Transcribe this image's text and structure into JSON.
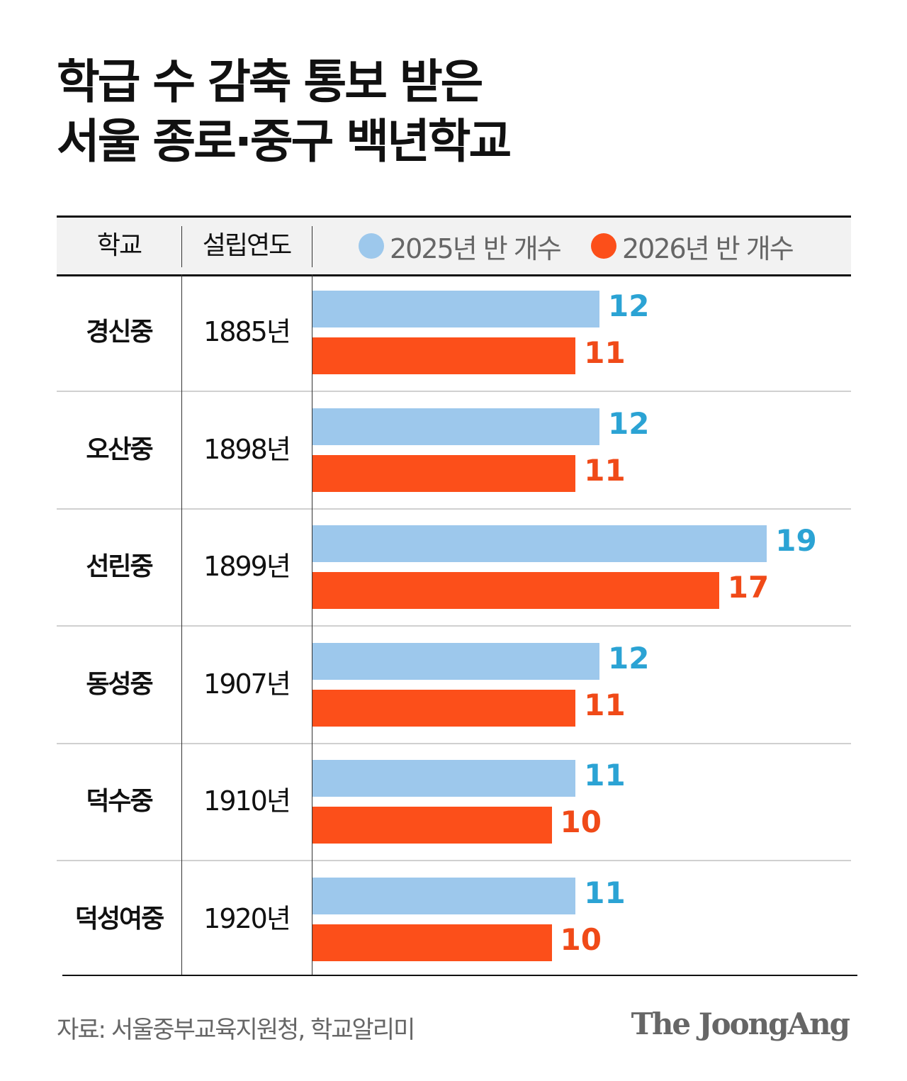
{
  "title_lines": [
    "학급 수 감축 통보 받은",
    "서울 종로·중구 백년학교"
  ],
  "header": {
    "school": "학교",
    "year": "설립연도"
  },
  "colors": {
    "bar_2025": "#9dc8ec",
    "bar_2026": "#fc4f1a",
    "label_2025": "#2ba3d4",
    "label_2026": "#f04a18"
  },
  "chart_data": {
    "type": "bar",
    "orientation": "horizontal",
    "categories": [
      "경신중",
      "오산중",
      "선린중",
      "동성중",
      "덕수중",
      "덕성여중"
    ],
    "founded": [
      "1885년",
      "1898년",
      "1899년",
      "1907년",
      "1910년",
      "1920년"
    ],
    "series": [
      {
        "name": "2025년 반 개수",
        "values": [
          12,
          12,
          19,
          12,
          11,
          11
        ]
      },
      {
        "name": "2026년 반 개수",
        "values": [
          11,
          11,
          17,
          11,
          10,
          10
        ]
      }
    ],
    "legend": "top",
    "grid": false
  },
  "footer": {
    "source": "자료: 서울중부교육지원청, 학교알리미",
    "logo": "The JoongAng"
  }
}
